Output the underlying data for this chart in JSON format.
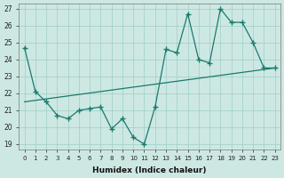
{
  "xlabel": "Humidex (Indice chaleur)",
  "xlim": [
    -0.5,
    23.5
  ],
  "ylim": [
    18.7,
    27.3
  ],
  "yticks": [
    19,
    20,
    21,
    22,
    23,
    24,
    25,
    26,
    27
  ],
  "xticks": [
    0,
    1,
    2,
    3,
    4,
    5,
    6,
    7,
    8,
    9,
    10,
    11,
    12,
    13,
    14,
    15,
    16,
    17,
    18,
    19,
    20,
    21,
    22,
    23
  ],
  "bg_color": "#cde8e3",
  "grid_color": "#9fcdc6",
  "line_color": "#1a7a6e",
  "zigzag_x": [
    0,
    1,
    2,
    3,
    4,
    5,
    6,
    7,
    8,
    9,
    10,
    11,
    12,
    13,
    14,
    15,
    16,
    17,
    18,
    19,
    20,
    21,
    22,
    23
  ],
  "zigzag_y": [
    24.7,
    22.1,
    21.5,
    20.7,
    20.5,
    21.0,
    21.1,
    21.2,
    19.9,
    20.5,
    19.4,
    19.0,
    21.2,
    24.6,
    24.4,
    26.7,
    24.0,
    23.8,
    27.0,
    26.2,
    26.2,
    25.0,
    23.5,
    23.5
  ],
  "trend_x": [
    0,
    23
  ],
  "trend_y": [
    21.5,
    23.5
  ]
}
